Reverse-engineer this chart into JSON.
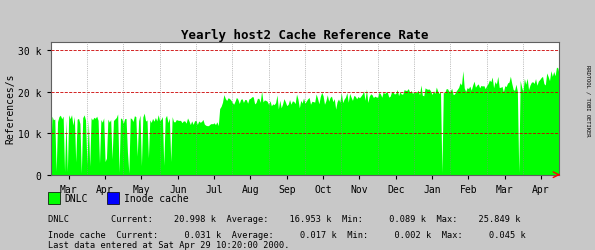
{
  "title": "Yearly host2 Cache Reference Rate",
  "ylabel": "References/s",
  "background_color": "#c8c8c8",
  "plot_bg_color": "#ffffff",
  "grid_color": "#a0a0a0",
  "x_months": [
    "Mar",
    "Apr",
    "May",
    "Jun",
    "Jul",
    "Aug",
    "Sep",
    "Oct",
    "Nov",
    "Dec",
    "Jan",
    "Feb",
    "Mar",
    "Apr"
  ],
  "yticks": [
    0,
    10000,
    20000,
    30000
  ],
  "ytick_labels": [
    "0",
    "10 k",
    "20 k",
    "30 k"
  ],
  "ymax": 32000,
  "dnlc_color": "#00ff00",
  "inode_color": "#0000ff",
  "legend_items": [
    "DNLC",
    "Inode cache"
  ],
  "stats_text": [
    "DNLC        Current:    20.998 k  Average:    16.953 k  Min:     0.089 k  Max:    25.849 k",
    "Inode cache  Current:     0.031 k  Average:     0.017 k  Min:     0.002 k  Max:     0.045 k"
  ],
  "footer": "Last data entered at Sat Apr 29 10:20:00 2000.",
  "sidebar_text": "RRDTOOL / TOBI OETIKER",
  "inode_values_multiplier": 0.002
}
